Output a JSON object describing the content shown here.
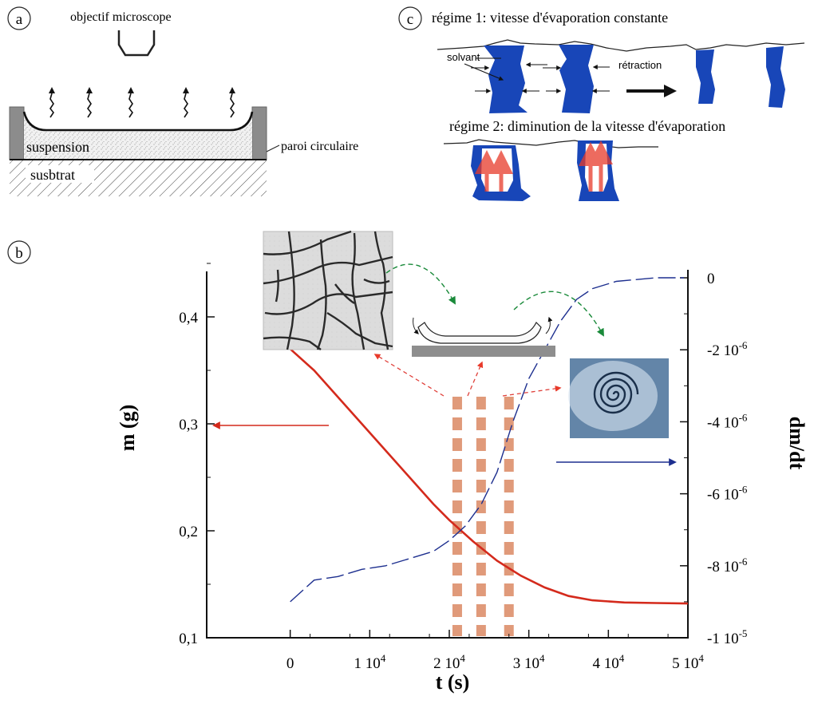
{
  "panel_a": {
    "badge": "a",
    "objective_label": "objectif microscope",
    "suspension_label": "suspension",
    "substrate_label": "susbtrat",
    "wall_label": "paroi circulaire"
  },
  "panel_c": {
    "badge": "c",
    "regime1_label": "régime 1: vitesse d'évaporation constante",
    "regime2_label": "régime 2: diminution de la vitesse d'évaporation",
    "solvent_label": "solvant",
    "retraction_label": "rétraction"
  },
  "panel_b": {
    "badge": "b"
  },
  "colors": {
    "mass_curve": "#d42a1c",
    "rate_curve": "#1d2f8f",
    "regime_bands": "#e09a7a",
    "green_arrows": "#1a8a3a",
    "pore_blue": "#1846b8"
  },
  "chart_data": {
    "type": "line",
    "xlabel": "t (s)",
    "ylabel_left": "m (g)",
    "ylabel_right": "dm/dt",
    "x_ticks": [
      {
        "value": 0,
        "label": "0"
      },
      {
        "value": 10000,
        "label": "1 10",
        "exp": "4"
      },
      {
        "value": 20000,
        "label": "2 10",
        "exp": "4"
      },
      {
        "value": 30000,
        "label": "3 10",
        "exp": "4"
      },
      {
        "value": 40000,
        "label": "4 10",
        "exp": "4"
      },
      {
        "value": 50000,
        "label": "5 10",
        "exp": "4"
      }
    ],
    "y_left_ticks": [
      {
        "value": 0.1,
        "label": "0,1"
      },
      {
        "value": 0.2,
        "label": "0,2"
      },
      {
        "value": 0.3,
        "label": "0,3"
      },
      {
        "value": 0.4,
        "label": "0,4"
      }
    ],
    "y_right_ticks": [
      {
        "value": 0,
        "label": "0",
        "exp": ""
      },
      {
        "value": -2e-06,
        "label": "-2 10",
        "exp": "-6"
      },
      {
        "value": -4e-06,
        "label": "-4 10",
        "exp": "-6"
      },
      {
        "value": -6e-06,
        "label": "-6 10",
        "exp": "-6"
      },
      {
        "value": -8e-06,
        "label": "-8 10",
        "exp": "-6"
      },
      {
        "value": -1e-05,
        "label": "-1 10",
        "exp": "-5"
      }
    ],
    "xlim": [
      -10500,
      50000
    ],
    "ylim_left": [
      0.1,
      0.45
    ],
    "ylim_right": [
      -1e-05,
      4e-07
    ],
    "series": [
      {
        "axis": "left",
        "style": "solid",
        "points": [
          [
            0,
            0.37
          ],
          [
            3000,
            0.35
          ],
          [
            6000,
            0.325
          ],
          [
            9000,
            0.3
          ],
          [
            12000,
            0.275
          ],
          [
            15000,
            0.25
          ],
          [
            18000,
            0.225
          ],
          [
            20000,
            0.21
          ],
          [
            23000,
            0.19
          ],
          [
            26000,
            0.172
          ],
          [
            29000,
            0.158
          ],
          [
            32000,
            0.147
          ],
          [
            35000,
            0.139
          ],
          [
            38000,
            0.135
          ],
          [
            42000,
            0.133
          ],
          [
            46000,
            0.1325
          ],
          [
            50000,
            0.132
          ]
        ]
      },
      {
        "axis": "right",
        "style": "dashed",
        "points": [
          [
            0,
            -9e-06
          ],
          [
            1000,
            -8.8e-06
          ],
          [
            3000,
            -8.4e-06
          ],
          [
            6000,
            -8.3e-06
          ],
          [
            9000,
            -8.1e-06
          ],
          [
            12000,
            -8e-06
          ],
          [
            15000,
            -7.8e-06
          ],
          [
            18000,
            -7.6e-06
          ],
          [
            20000,
            -7.3e-06
          ],
          [
            22000,
            -6.9e-06
          ],
          [
            24000,
            -6.3e-06
          ],
          [
            26000,
            -5.4e-06
          ],
          [
            28000,
            -4e-06
          ],
          [
            30000,
            -2.8e-06
          ],
          [
            32000,
            -2e-06
          ],
          [
            34000,
            -1.2e-06
          ],
          [
            36000,
            -6e-07
          ],
          [
            38000,
            -3e-07
          ],
          [
            41000,
            -1e-07
          ],
          [
            46000,
            0
          ],
          [
            49500,
            0
          ]
        ]
      }
    ],
    "regime_bands_t": [
      21000,
      24000,
      27500
    ]
  }
}
